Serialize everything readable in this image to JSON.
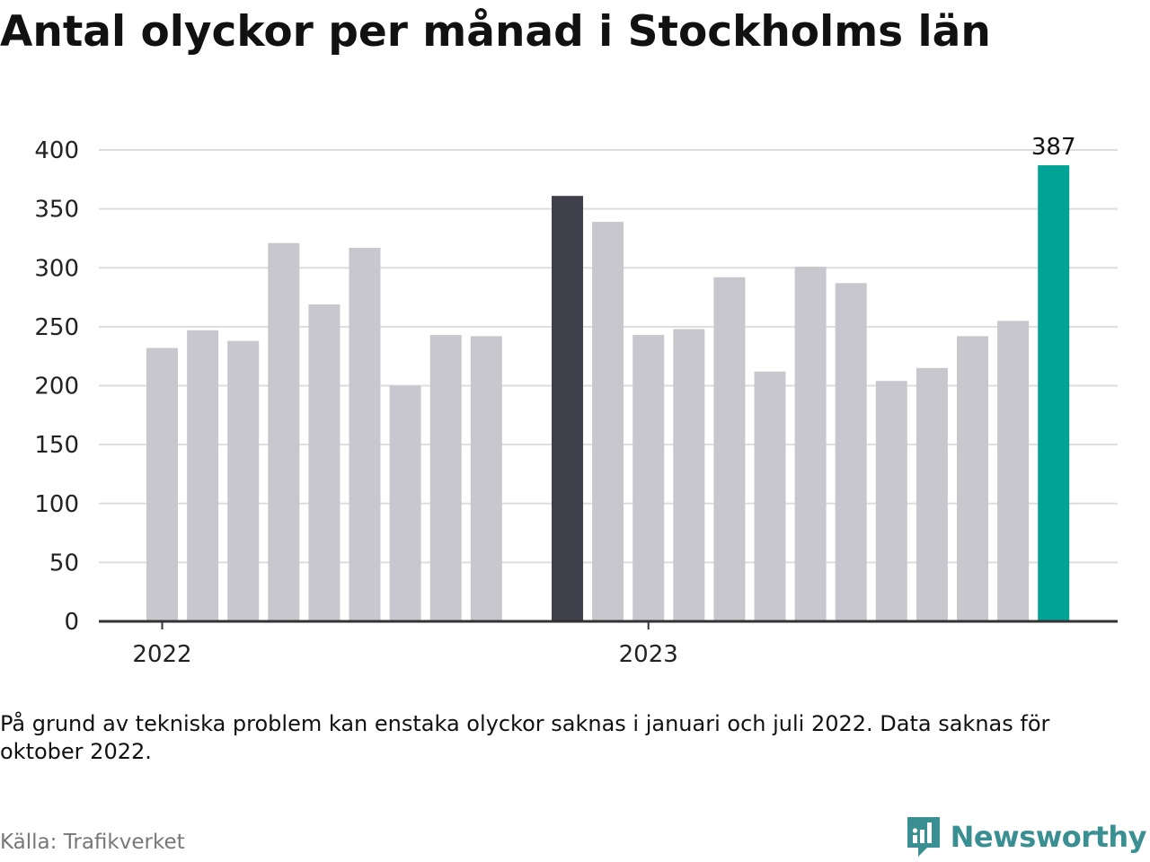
{
  "title": "Antal olyckor per månad i Stockholms län",
  "note": "På grund av tekniska problem kan enstaka olyckor saknas i januari och juli 2022. Data saknas för oktober 2022.",
  "source": "Källa: Trafikverket",
  "brand": {
    "name": "Newsworthy",
    "icon": "newsworthy-logo-icon"
  },
  "colors": {
    "default": "#c8c7ce",
    "highlight_dark": "#403f4c",
    "highlight_accent": "#00a396",
    "grid": "#dddddd",
    "axis": "#333333"
  },
  "chart_data": {
    "type": "bar",
    "ylim": [
      0,
      400
    ],
    "yticks": [
      0,
      50,
      100,
      150,
      200,
      250,
      300,
      350,
      400
    ],
    "grid": true,
    "xtick_labels": [
      {
        "label": "2022",
        "at": 0
      },
      {
        "label": "2023",
        "at": 12
      }
    ],
    "bars": [
      {
        "month": "2022-01",
        "value": 232,
        "style": "default"
      },
      {
        "month": "2022-02",
        "value": 247,
        "style": "default"
      },
      {
        "month": "2022-03",
        "value": 238,
        "style": "default"
      },
      {
        "month": "2022-04",
        "value": 321,
        "style": "default"
      },
      {
        "month": "2022-05",
        "value": 269,
        "style": "default"
      },
      {
        "month": "2022-06",
        "value": 317,
        "style": "default"
      },
      {
        "month": "2022-07",
        "value": 200,
        "style": "default"
      },
      {
        "month": "2022-08",
        "value": 243,
        "style": "default"
      },
      {
        "month": "2022-09",
        "value": 242,
        "style": "default"
      },
      {
        "month": "2022-10",
        "value": null,
        "style": "missing"
      },
      {
        "month": "2022-11",
        "value": 361,
        "style": "highlight_dark"
      },
      {
        "month": "2022-12",
        "value": 339,
        "style": "default"
      },
      {
        "month": "2023-01",
        "value": 243,
        "style": "default"
      },
      {
        "month": "2023-02",
        "value": 248,
        "style": "default"
      },
      {
        "month": "2023-03",
        "value": 292,
        "style": "default"
      },
      {
        "month": "2023-04",
        "value": 212,
        "style": "default"
      },
      {
        "month": "2023-05",
        "value": 301,
        "style": "default"
      },
      {
        "month": "2023-06",
        "value": 287,
        "style": "default"
      },
      {
        "month": "2023-07",
        "value": 204,
        "style": "default"
      },
      {
        "month": "2023-08",
        "value": 215,
        "style": "default"
      },
      {
        "month": "2023-09",
        "value": 242,
        "style": "default"
      },
      {
        "month": "2023-10",
        "value": 255,
        "style": "default"
      },
      {
        "month": "2023-11",
        "value": 387,
        "style": "highlight_accent",
        "label": "387"
      }
    ]
  }
}
